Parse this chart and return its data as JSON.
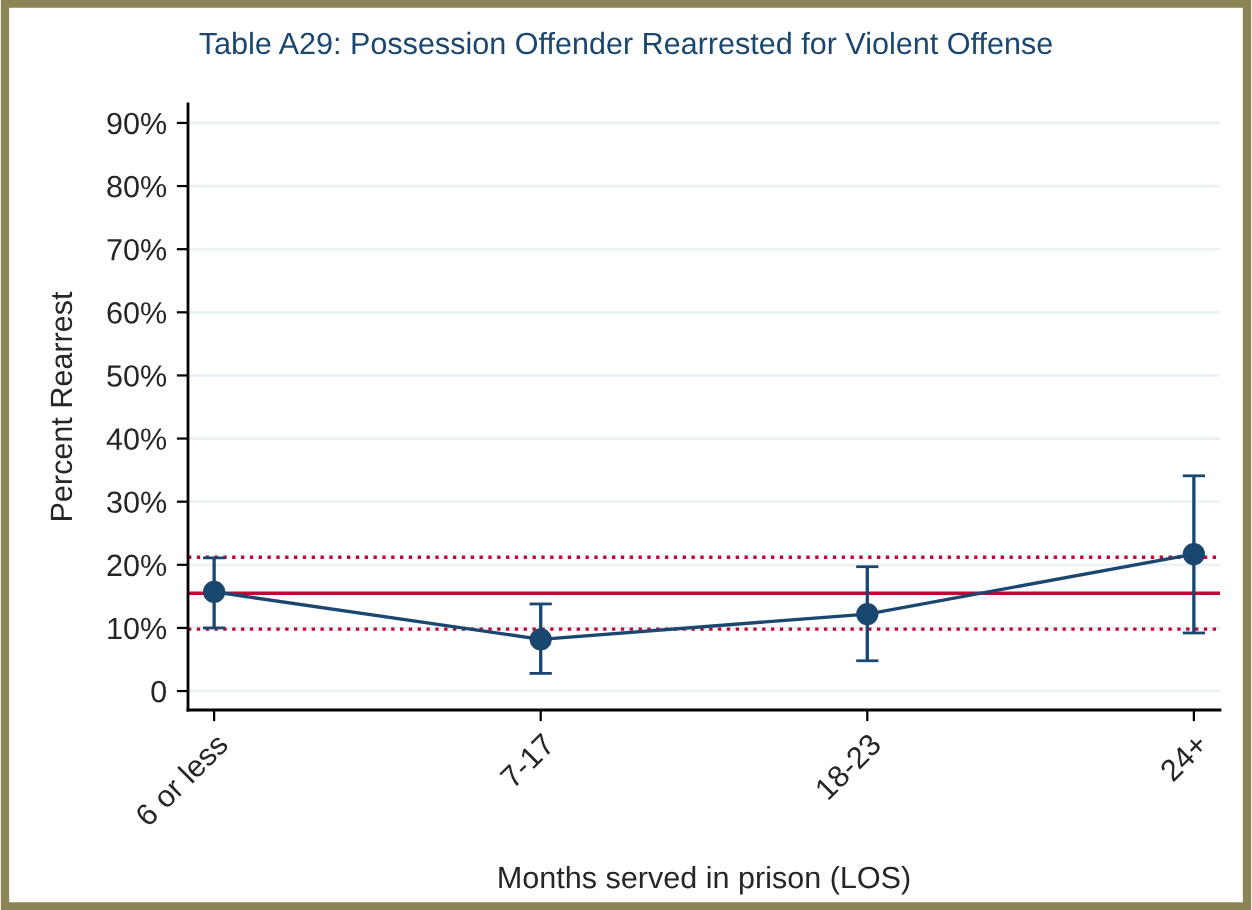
{
  "chart_data": {
    "type": "line",
    "title": "Table A29: Possession Offender Rearrested for Violent Offense",
    "xlabel": "Months served in prison (LOS)",
    "ylabel": "Percent Rearrest",
    "categories": [
      "6 or less",
      "7-17",
      "18-23",
      "24+"
    ],
    "series": [
      {
        "color": "#1a476f",
        "values": [
          15.7,
          8.2,
          12.2,
          21.7
        ],
        "errors": [
          [
            10.0,
            21.1
          ],
          [
            2.8,
            13.8
          ],
          [
            4.8,
            19.7
          ],
          [
            9.2,
            34.1
          ]
        ]
      }
    ],
    "marker": "circle",
    "line_style": "solid",
    "grid": "y",
    "ylim": [
      -3,
      93
    ],
    "yticks": [
      {
        "value": 0,
        "label": "0"
      },
      {
        "value": 10,
        "label": "10%"
      },
      {
        "value": 20,
        "label": "20%"
      },
      {
        "value": 30,
        "label": "30%"
      },
      {
        "value": 40,
        "label": "40%"
      },
      {
        "value": 50,
        "label": "50%"
      },
      {
        "value": 60,
        "label": "60%"
      },
      {
        "value": 70,
        "label": "70%"
      },
      {
        "value": 80,
        "label": "80%"
      },
      {
        "value": 90,
        "label": "90%"
      }
    ],
    "ref_lines": [
      {
        "axis": "y",
        "value": 15.5,
        "color": "#c10534",
        "line_style": "solid"
      },
      {
        "axis": "y",
        "value": 21.2,
        "color": "#c10534",
        "line_style": "dotted"
      },
      {
        "axis": "y",
        "value": 9.8,
        "color": "#c10534",
        "line_style": "dotted"
      }
    ]
  }
}
